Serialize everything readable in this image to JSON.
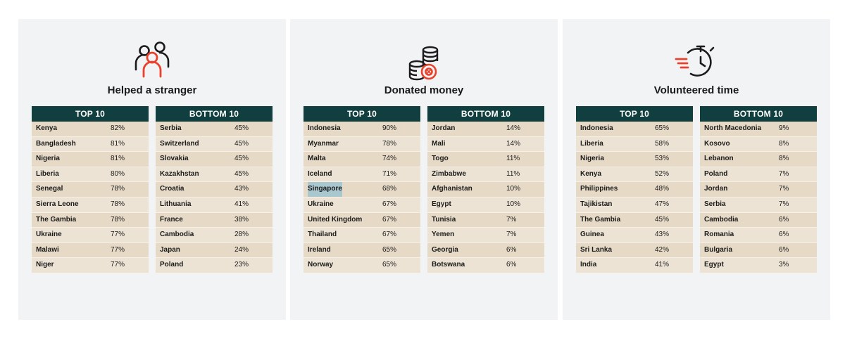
{
  "panels": [
    {
      "title": "Helped a stranger",
      "icon": "people-icon",
      "top_header": "TOP 10",
      "bottom_header": "BOTTOM 10",
      "top": [
        {
          "country": "Kenya",
          "value": "82%"
        },
        {
          "country": "Bangladesh",
          "value": "81%"
        },
        {
          "country": "Nigeria",
          "value": "81%"
        },
        {
          "country": "Liberia",
          "value": "80%"
        },
        {
          "country": "Senegal",
          "value": "78%"
        },
        {
          "country": "Sierra Leone",
          "value": "78%"
        },
        {
          "country": "The Gambia",
          "value": "78%"
        },
        {
          "country": "Ukraine",
          "value": "77%"
        },
        {
          "country": "Malawi",
          "value": "77%"
        },
        {
          "country": "Niger",
          "value": "77%"
        }
      ],
      "bottom": [
        {
          "country": "Serbia",
          "value": "45%"
        },
        {
          "country": "Switzerland",
          "value": "45%"
        },
        {
          "country": "Slovakia",
          "value": "45%"
        },
        {
          "country": "Kazakhstan",
          "value": "45%"
        },
        {
          "country": "Croatia",
          "value": "43%"
        },
        {
          "country": "Lithuania",
          "value": "41%"
        },
        {
          "country": "France",
          "value": "38%"
        },
        {
          "country": "Cambodia",
          "value": "28%"
        },
        {
          "country": "Japan",
          "value": "24%"
        },
        {
          "country": "Poland",
          "value": "23%"
        }
      ]
    },
    {
      "title": "Donated money",
      "icon": "coins-icon",
      "top_header": "TOP 10",
      "bottom_header": "BOTTOM 10",
      "top": [
        {
          "country": "Indonesia",
          "value": "90%"
        },
        {
          "country": "Myanmar",
          "value": "78%"
        },
        {
          "country": "Malta",
          "value": "74%"
        },
        {
          "country": "Iceland",
          "value": "71%"
        },
        {
          "country": "Singapore",
          "value": "68%"
        },
        {
          "country": "Ukraine",
          "value": "67%"
        },
        {
          "country": "United Kingdom",
          "value": "67%"
        },
        {
          "country": "Thailand",
          "value": "67%"
        },
        {
          "country": "Ireland",
          "value": "65%"
        },
        {
          "country": "Norway",
          "value": "65%"
        }
      ],
      "bottom": [
        {
          "country": "Jordan",
          "value": "14%"
        },
        {
          "country": "Mali",
          "value": "14%"
        },
        {
          "country": "Togo",
          "value": "11%"
        },
        {
          "country": "Zimbabwe",
          "value": "11%"
        },
        {
          "country": "Afghanistan",
          "value": "10%"
        },
        {
          "country": "Egypt",
          "value": "10%"
        },
        {
          "country": "Tunisia",
          "value": "7%"
        },
        {
          "country": "Yemen",
          "value": "7%"
        },
        {
          "country": "Georgia",
          "value": "6%"
        },
        {
          "country": "Botswana",
          "value": "6%"
        }
      ]
    },
    {
      "title": "Volunteered time",
      "icon": "stopwatch-icon",
      "top_header": "TOP 10",
      "bottom_header": "BOTTOM 10",
      "top": [
        {
          "country": "Indonesia",
          "value": "65%"
        },
        {
          "country": "Liberia",
          "value": "58%"
        },
        {
          "country": "Nigeria",
          "value": "53%"
        },
        {
          "country": "Kenya",
          "value": "52%"
        },
        {
          "country": "Philippines",
          "value": "48%"
        },
        {
          "country": "Tajikistan",
          "value": "47%"
        },
        {
          "country": "The Gambia",
          "value": "45%"
        },
        {
          "country": "Guinea",
          "value": "43%"
        },
        {
          "country": "Sri Lanka",
          "value": "42%"
        },
        {
          "country": "India",
          "value": "41%"
        }
      ],
      "bottom": [
        {
          "country": "North Macedonia",
          "value": "9%"
        },
        {
          "country": "Kosovo",
          "value": "8%"
        },
        {
          "country": "Lebanon",
          "value": "8%"
        },
        {
          "country": "Poland",
          "value": "7%"
        },
        {
          "country": "Jordan",
          "value": "7%"
        },
        {
          "country": "Serbia",
          "value": "7%"
        },
        {
          "country": "Cambodia",
          "value": "6%"
        },
        {
          "country": "Romania",
          "value": "6%"
        },
        {
          "country": "Bulgaria",
          "value": "6%"
        },
        {
          "country": "Egypt",
          "value": "3%"
        }
      ]
    }
  ],
  "colors": {
    "accent": "#e8412c",
    "header_bg": "#113f3f",
    "row_odd": "#e6dac6",
    "row_even": "#ece3d4",
    "panel_bg": "#f1f3f5",
    "highlight": "#a9c7cf"
  }
}
